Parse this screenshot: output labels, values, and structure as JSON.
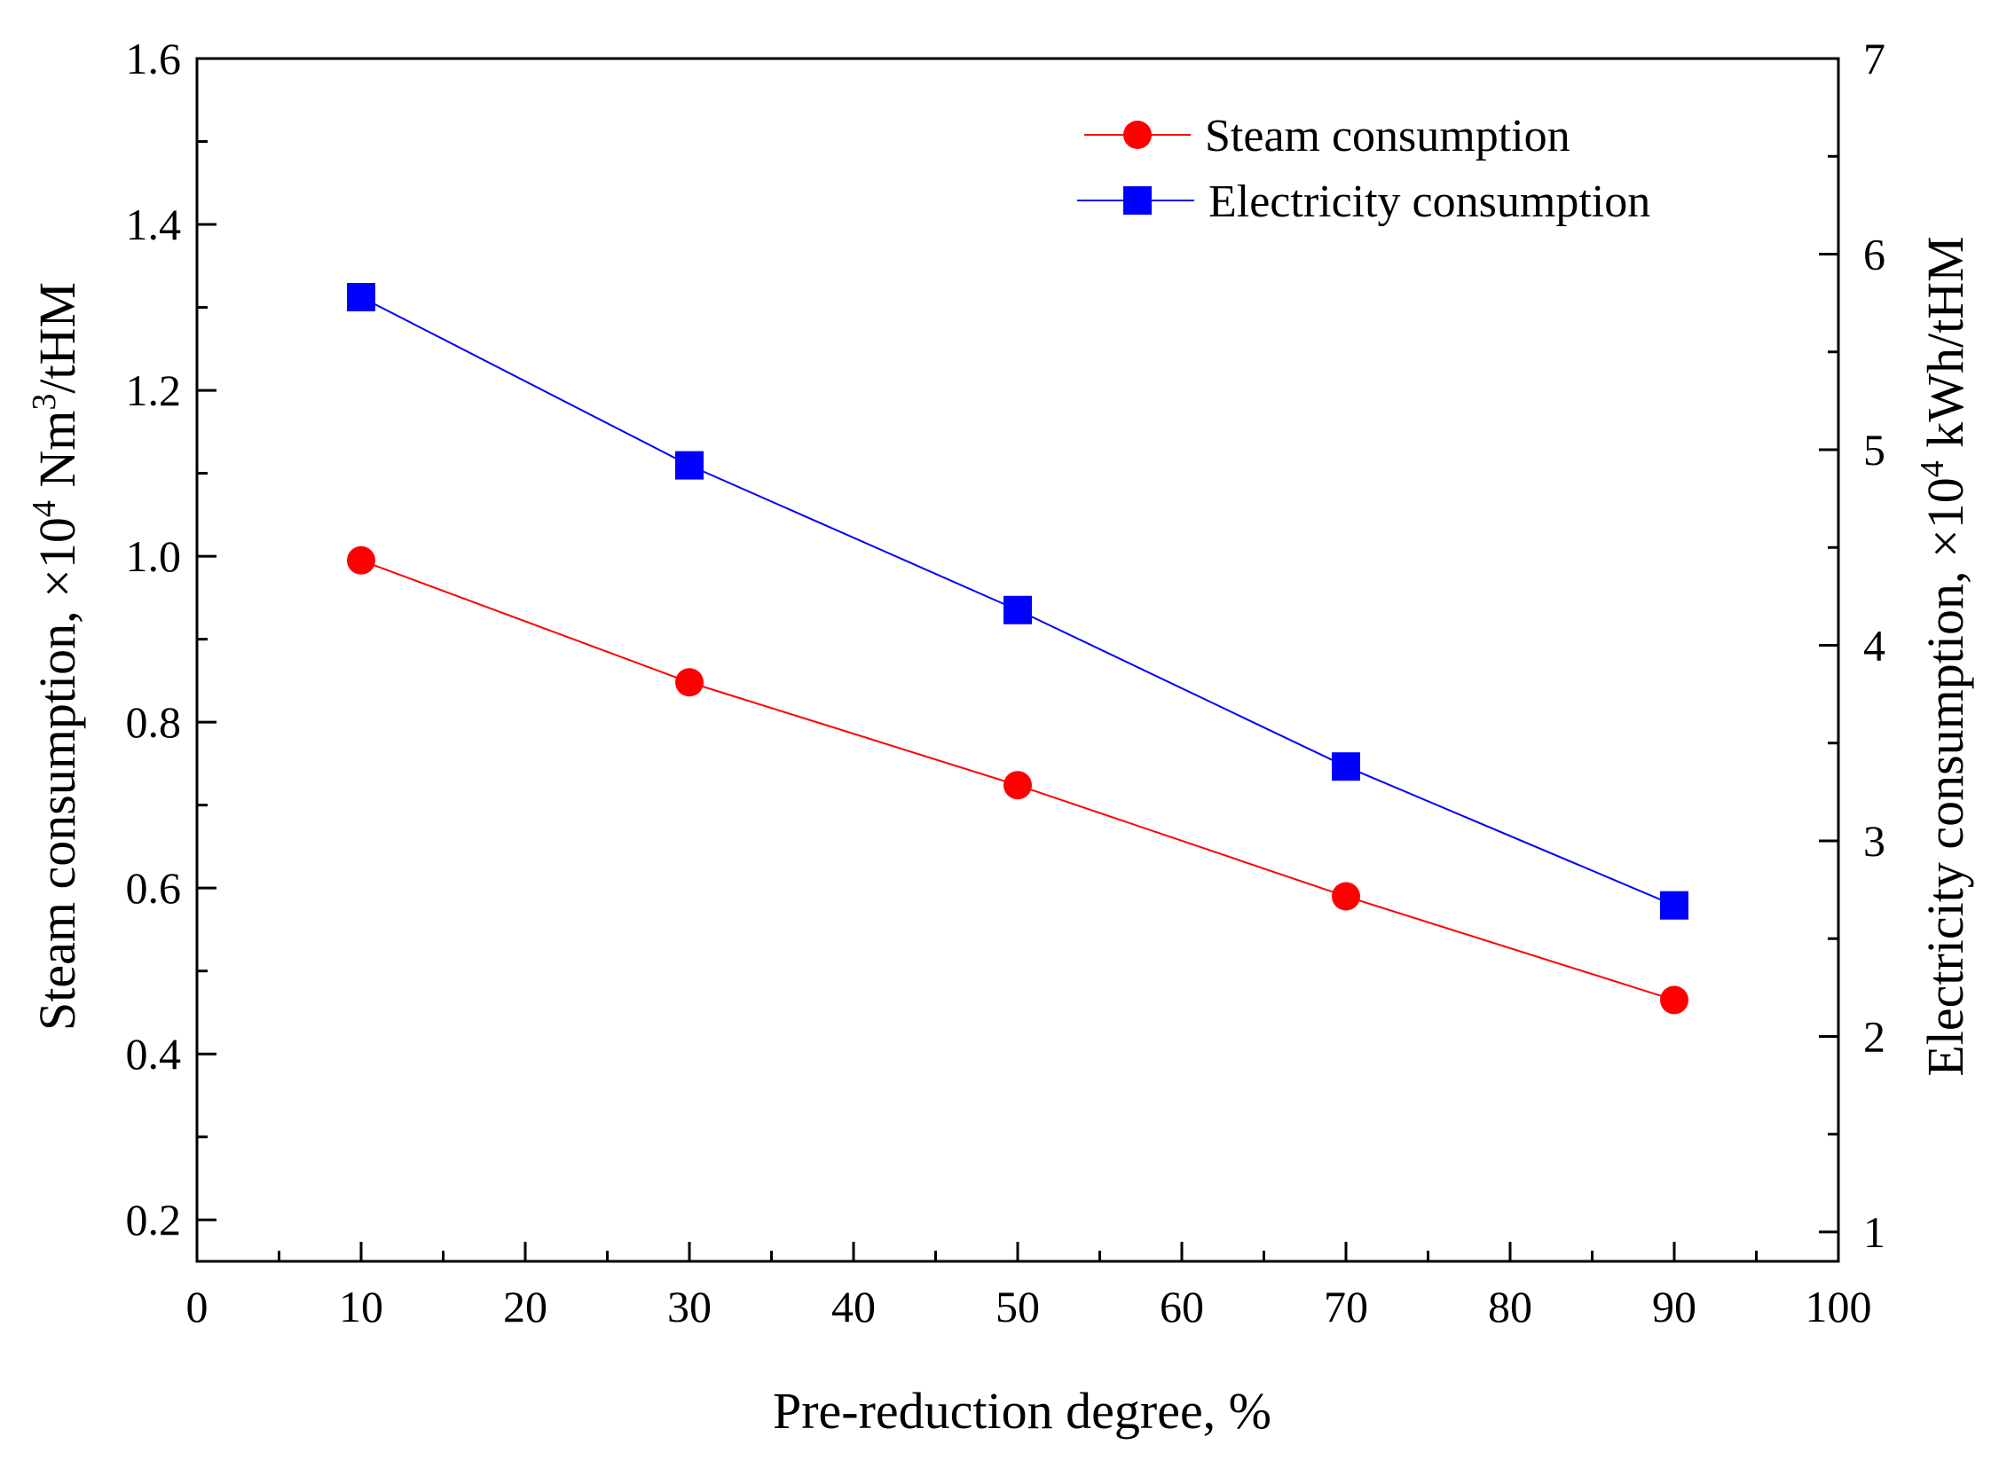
{
  "chart_data": {
    "type": "line",
    "title": "",
    "xlabel": "Pre-reduction degree, %",
    "ylabel_left": {
      "prefix": "Steam consumption, ×10",
      "exp": "4",
      "mid": " Nm",
      "exp2": "3",
      "suffix": "/tHM"
    },
    "ylabel_right": {
      "prefix": "Electricity consumption, ×10",
      "exp": "4",
      "suffix": " kWh/tHM"
    },
    "xlim": [
      0,
      100
    ],
    "ylim_left": [
      0.15,
      1.6
    ],
    "ylim_right": [
      0.85,
      7
    ],
    "x_ticks": [
      "0",
      "10",
      "20",
      "30",
      "40",
      "50",
      "60",
      "70",
      "80",
      "90",
      "100"
    ],
    "y_left_ticks": [
      "0.2",
      "0.4",
      "0.6",
      "0.8",
      "1.0",
      "1.2",
      "1.4",
      "1.6"
    ],
    "y_right_ticks": [
      "1",
      "2",
      "3",
      "4",
      "5",
      "6",
      "7"
    ],
    "legend_position": "top-right",
    "series": [
      {
        "name": "Steam consumption",
        "axis": "left",
        "color": "#ff0000",
        "marker": "circle",
        "x": [
          10,
          30,
          50,
          70,
          90
        ],
        "y": [
          0.995,
          0.848,
          0.724,
          0.59,
          0.465
        ]
      },
      {
        "name": "Electricity consumption",
        "axis": "right",
        "color": "#0000ff",
        "marker": "square",
        "x": [
          10,
          30,
          50,
          70,
          90
        ],
        "y": [
          5.78,
          4.92,
          4.18,
          3.38,
          2.67
        ]
      }
    ]
  }
}
